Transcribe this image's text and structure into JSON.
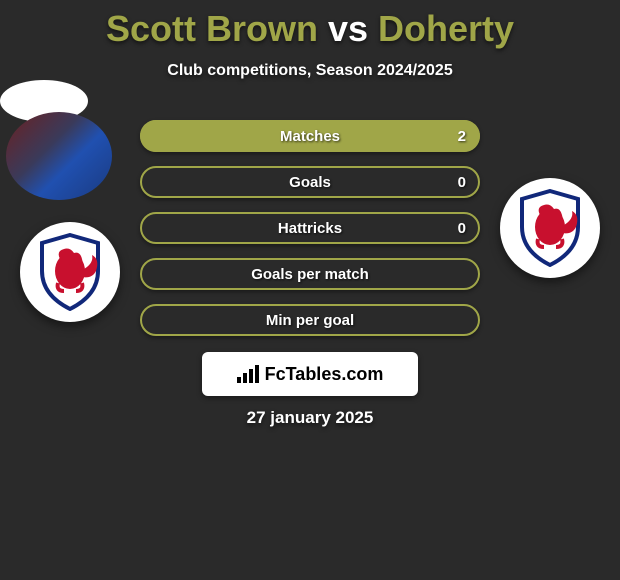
{
  "title": {
    "player1": "Scott Brown",
    "vs": "vs",
    "player2": "Doherty",
    "player1_color": "#a0a648",
    "vs_color": "#ffffff",
    "player2_color": "#a0a648"
  },
  "subtitle": "Club competitions, Season 2024/2025",
  "bars": [
    {
      "label": "Matches",
      "value_right": "2",
      "bg_color": "#a0a648",
      "fill_color": "#a0a648",
      "fill_pct": 100,
      "border_color": "#a0a648"
    },
    {
      "label": "Goals",
      "value_right": "0",
      "bg_color": "transparent",
      "fill_color": "transparent",
      "fill_pct": 0,
      "border_color": "#a0a648"
    },
    {
      "label": "Hattricks",
      "value_right": "0",
      "bg_color": "transparent",
      "fill_color": "transparent",
      "fill_pct": 0,
      "border_color": "#a0a648"
    },
    {
      "label": "Goals per match",
      "value_right": "",
      "bg_color": "transparent",
      "fill_color": "transparent",
      "fill_pct": 0,
      "border_color": "#a0a648"
    },
    {
      "label": "Min per goal",
      "value_right": "",
      "bg_color": "transparent",
      "fill_color": "transparent",
      "fill_pct": 0,
      "border_color": "#a0a648"
    }
  ],
  "crest": {
    "shield_fill": "#ffffff",
    "shield_stroke": "#11287a",
    "lion_fill": "#c8102e"
  },
  "watermark": {
    "text": "FcTables.com",
    "icon_name": "bars-ascending-icon"
  },
  "date": "27 january 2025",
  "background_color": "#2a2a2a"
}
